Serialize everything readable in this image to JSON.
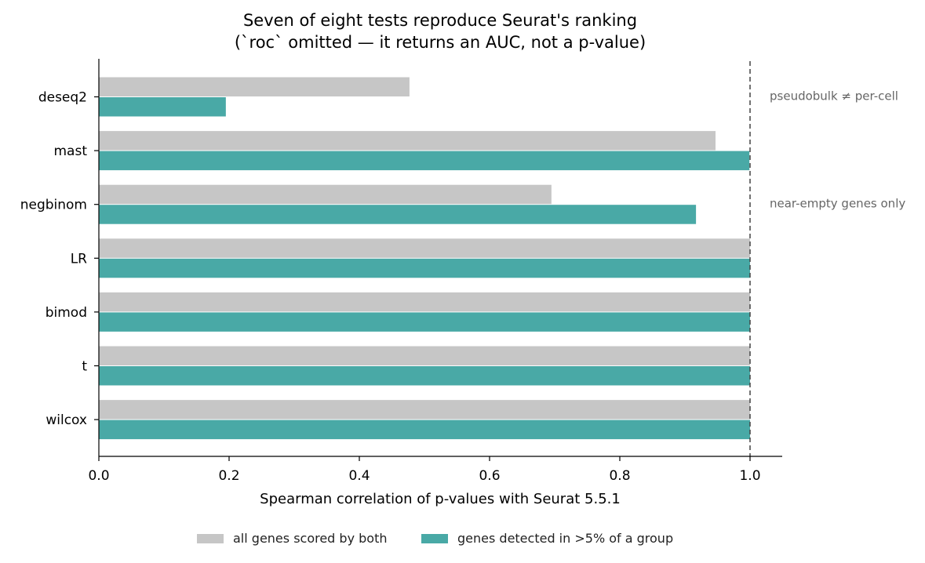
{
  "chart_data": {
    "type": "bar",
    "orientation": "horizontal",
    "title": "Seven of eight tests reproduce Seurat's ranking",
    "subtitle": "(`roc` omitted — it returns an AUC, not a p-value)",
    "xlabel": "Spearman correlation of p-values with Seurat 5.5.1",
    "ylabel": "",
    "xlim": [
      0.0,
      1.05
    ],
    "xticks": [
      0.0,
      0.2,
      0.4,
      0.6,
      0.8,
      1.0
    ],
    "xtick_labels": [
      "0.0",
      "0.2",
      "0.4",
      "0.6",
      "0.8",
      "1.0"
    ],
    "categories": [
      "deseq2",
      "mast",
      "negbinom",
      "LR",
      "bimod",
      "t",
      "wilcox"
    ],
    "series": [
      {
        "name": "all genes scored by both",
        "color": "#c6c6c6",
        "values": [
          0.477,
          0.947,
          0.695,
          1.0,
          1.0,
          1.0,
          1.0
        ]
      },
      {
        "name": "genes detected in >5% of a group",
        "color": "#49a9a6",
        "values": [
          0.195,
          0.999,
          0.917,
          1.0,
          1.0,
          1.0,
          1.0
        ]
      }
    ],
    "reference_line": {
      "x": 1.0,
      "style": "dashed",
      "color": "#444444"
    },
    "annotations": [
      {
        "category": "deseq2",
        "text": "pseudobulk ≠ per-cell"
      },
      {
        "category": "negbinom",
        "text": "near-empty genes only"
      }
    ],
    "grid": false,
    "legend_position": "bottom-center"
  }
}
